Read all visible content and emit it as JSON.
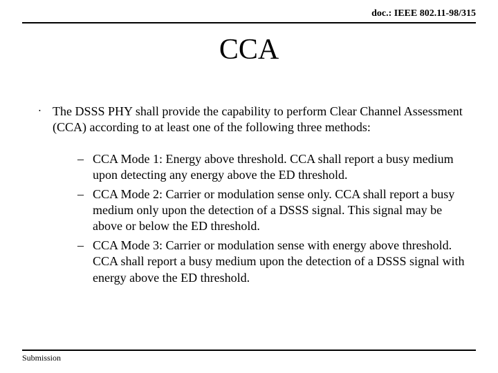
{
  "header": {
    "doc_id": "doc.: IEEE 802.11-98/315"
  },
  "title": "CCA",
  "body": {
    "intro": "The DSSS PHY shall provide the capability to perform Clear Channel Assessment (CCA) according to at least one of the following three methods:",
    "modes": [
      "CCA Mode 1:  Energy above threshold.  CCA shall report a busy medium upon detecting any energy above the ED threshold.",
      "CCA Mode 2:  Carrier or modulation sense only.  CCA shall report a busy medium only upon the detection of a DSSS signal.  This signal may be above or below the ED threshold.",
      "CCA Mode 3:  Carrier or modulation sense with energy above threshold.  CCA shall report a busy medium upon the detection of a DSSS signal with energy above the ED threshold."
    ]
  },
  "footer": {
    "label": "Submission"
  },
  "style": {
    "background_color": "#ffffff",
    "text_color": "#000000",
    "rule_color": "#000000",
    "font_family": "Times New Roman",
    "title_fontsize": 42,
    "body_fontsize": 18,
    "docid_fontsize": 14,
    "footer_fontsize": 12
  }
}
